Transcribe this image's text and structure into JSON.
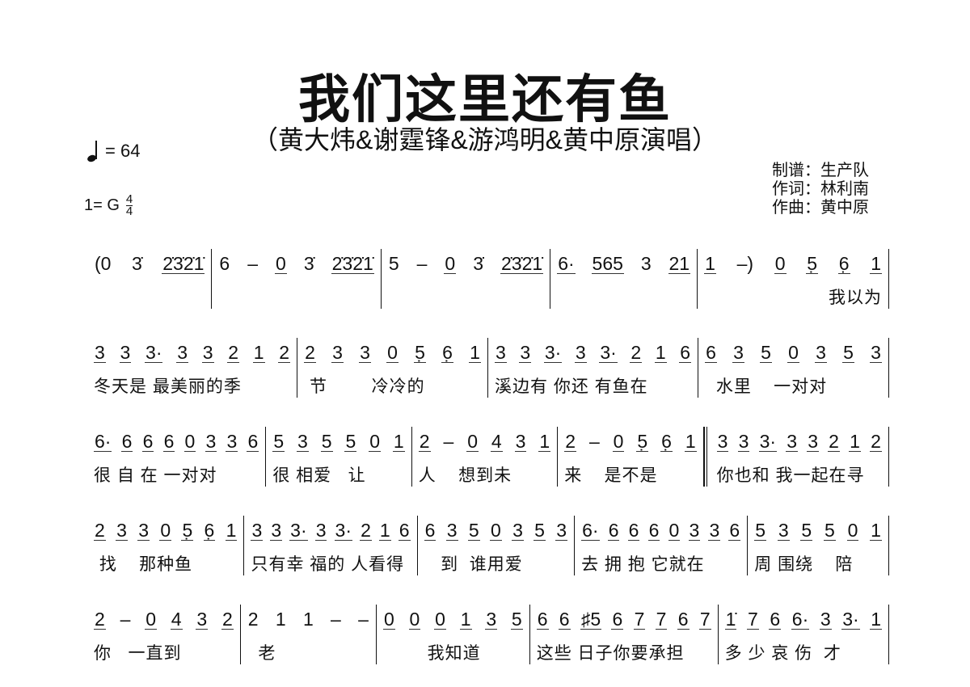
{
  "header": {
    "title": "我们这里还有鱼",
    "subtitle": "（黄大炜&谢霆锋&游鸿明&黄中原演唱）",
    "tempo": "= 64",
    "key": "1= G",
    "time_top": "4",
    "time_bottom": "4",
    "credits": [
      "制谱：生产队",
      "作词：林利南",
      "作曲：黄中原"
    ]
  },
  "rows": [
    {
      "measures": [
        {
          "notes": "(0 3̇ 2̇3̇2̇1̇",
          "lyrics": ""
        },
        {
          "notes": "6 – 0 3̇ 2̇3̇2̇1̇",
          "lyrics": ""
        },
        {
          "notes": "5 – 0 3̇ 2̇3̇2̇1̇",
          "lyrics": ""
        },
        {
          "notes": "6· 565 3 21",
          "lyrics": ""
        },
        {
          "notes": "1 –) 0 5̣ 6̣ 1",
          "lyrics": "我以为"
        }
      ]
    },
    {
      "measures": [
        {
          "notes": "3 3 3· 3 3 2 1 2",
          "lyrics": "冬天是 最美丽的季"
        },
        {
          "notes": "2 3 3 0 5̣ 6̣ 1",
          "lyrics": " 节        冷冷的"
        },
        {
          "notes": "3 3 3· 3 3· 2 1 6",
          "lyrics": "溪边有 你还 有鱼在"
        },
        {
          "notes": "6 3 5 0 3 5 3",
          "lyrics": "  水里    一对对"
        }
      ]
    },
    {
      "measures": [
        {
          "notes": "6· 6 6 6 0 3 3 6",
          "lyrics": "很 自 在 一对对"
        },
        {
          "notes": "5 3 5 5 0 1",
          "lyrics": "很 相爱   让"
        },
        {
          "notes": "2 – 0 4 3 1",
          "lyrics": "人    想到未"
        },
        {
          "notes": "2 – 0 5̣ 6̣ 1",
          "lyrics": "来    是不是"
        },
        {
          "notes": "3 3 3· 3 3 2 1 2",
          "lyrics": "你也和 我一起在寻",
          "repeat": true
        }
      ]
    },
    {
      "measures": [
        {
          "notes": "2 3 3 0 5̣ 6̣ 1",
          "lyrics": " 找    那种鱼"
        },
        {
          "notes": "3 3 3· 3 3· 2 1 6",
          "lyrics": "只有幸 福的 人看得"
        },
        {
          "notes": "6 3 5 0 3 5 3",
          "lyrics": "   到  谁用爱"
        },
        {
          "notes": "6· 6 6 6 0 3 3 6",
          "lyrics": "去 拥 抱 它就在"
        },
        {
          "notes": "5 3 5 5 0 1",
          "lyrics": "周 围绕    陪"
        }
      ]
    },
    {
      "measures": [
        {
          "notes": "2 – 0 4 3 2",
          "lyrics": "你   一直到"
        },
        {
          "notes": "2 1 1 – –",
          "lyrics": "  老"
        },
        {
          "notes": "0 0 0 1 3 5",
          "lyrics": "        我知道"
        },
        {
          "notes": "6 6 ♯5 6 7 7 6 7",
          "lyrics": "这些 日子你要承担"
        },
        {
          "notes": "1̇ 7 6 6· 3 3· 1",
          "lyrics": "多 少 哀 伤  才"
        }
      ]
    }
  ]
}
